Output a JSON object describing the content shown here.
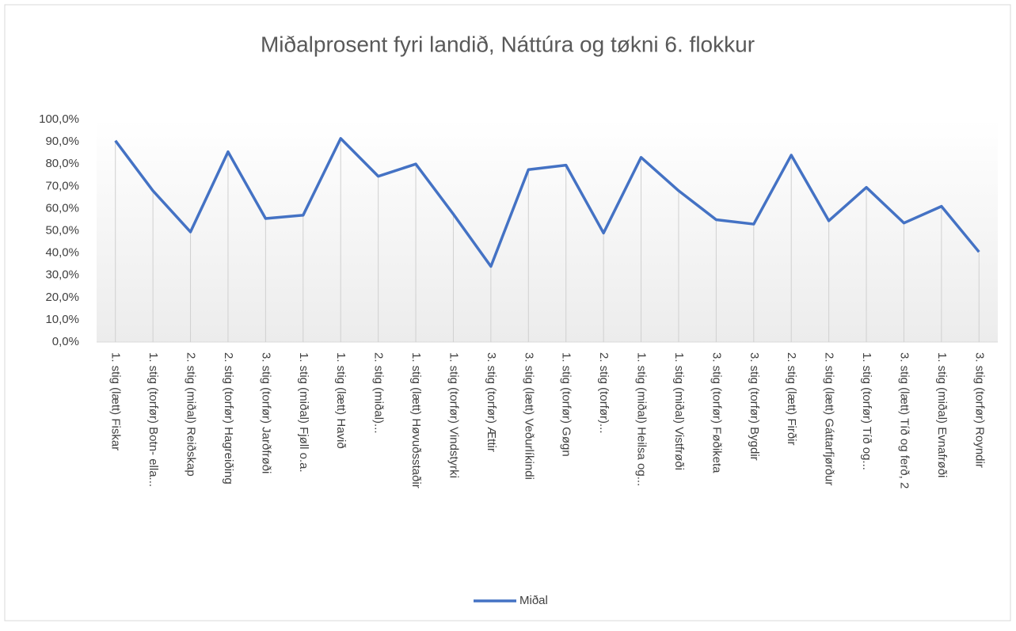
{
  "chart_data": {
    "type": "line",
    "title": "Miðalprosent fyri landið, Náttúra og tøkni 6. flokkur",
    "categories": [
      "1. stig (lætt) Fiskar",
      "1. stig (torfør) Botn- ella...",
      "2. stig (miðal) Reiðskap",
      "2. stig (torfør) Hagreiðing",
      "3. stig (torfør) Jarðfrøði",
      "1. stig (miðal) Fjøll o.a.",
      "1. stig (lætt) Havið",
      "2. stig (miðal)...",
      "1. stig (lætt) Høvuðsstaðir",
      "1. stig (torfør) Vindstyrki",
      "3. stig (torfør) Ættir",
      "3. stig (lætt) Veðurlíkindi",
      "1. stig (torfør) Gøgn",
      "2. stig (torfør)...",
      "1. stig (miðal) Heilsa og...",
      "1. stig (miðal) Vistfrøði",
      "3. stig (torfør) Føðiketa",
      "3. stig (torfør) Bygdir",
      "2. stig (lætt) Firðir",
      "2. stig (lætt) Gáttarfjørður",
      "1. stig (torfør) Tíð og...",
      "3. stig (lætt) Tíð og ferð, 2",
      "1. stig (miðal) Evnafrøði",
      "3. stig (torfør) Royndir"
    ],
    "series": [
      {
        "name": "Miðal",
        "color": "#4472c4",
        "values": [
          90.5,
          68,
          49.5,
          85.5,
          55.5,
          57,
          91.5,
          74.5,
          80,
          57.5,
          34,
          77.5,
          79.5,
          49,
          83,
          68,
          55,
          53,
          84,
          54.5,
          69.5,
          53.5,
          61,
          40.5
        ]
      }
    ],
    "ylim": [
      0,
      100
    ],
    "yticks": [
      {
        "value": 0,
        "label": "0,0%"
      },
      {
        "value": 10,
        "label": "10,0%"
      },
      {
        "value": 20,
        "label": "20,0%"
      },
      {
        "value": 30,
        "label": "30,0%"
      },
      {
        "value": 40,
        "label": "40,0%"
      },
      {
        "value": 50,
        "label": "50,0%"
      },
      {
        "value": 60,
        "label": "60,0%"
      },
      {
        "value": 70,
        "label": "70,0%"
      },
      {
        "value": 80,
        "label": "80,0%"
      },
      {
        "value": 90,
        "label": "90,0%"
      },
      {
        "value": 100,
        "label": "100,0%"
      }
    ],
    "drop_lines": true,
    "legend": "bottom"
  }
}
